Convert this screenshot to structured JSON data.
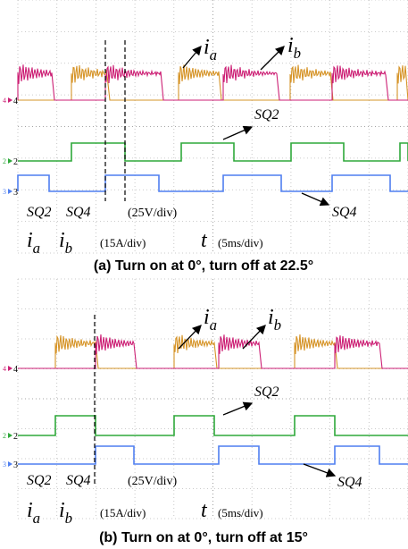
{
  "panels": [
    {
      "annotations": {
        "ia": {
          "symbol": "i",
          "subscript": "a"
        },
        "ib": {
          "symbol": "i",
          "subscript": "b"
        },
        "sq2": "SQ2",
        "sq4": "SQ4"
      },
      "channels": [
        "4",
        "2",
        "3"
      ],
      "legend": {
        "sq2": "SQ2",
        "sq4": "SQ4",
        "voltage_scale": "(25V/div)",
        "ia": {
          "symbol": "i",
          "subscript": "a"
        },
        "ib": {
          "symbol": "i",
          "subscript": "b"
        },
        "current_scale": "(15A/div)",
        "time": "t",
        "time_scale": "(5ms/div)"
      },
      "caption": "(a) Turn on at 0°, turn off at 22.5°"
    },
    {
      "annotations": {
        "ia": {
          "symbol": "i",
          "subscript": "a"
        },
        "ib": {
          "symbol": "i",
          "subscript": "b"
        },
        "sq2": "SQ2",
        "sq4": "SQ4"
      },
      "channels": [
        "4",
        "2",
        "3"
      ],
      "legend": {
        "sq2": "SQ2",
        "sq4": "SQ4",
        "voltage_scale": "(25V/div)",
        "ia": {
          "symbol": "i",
          "subscript": "a"
        },
        "ib": {
          "symbol": "i",
          "subscript": "b"
        },
        "current_scale": "(15A/div)",
        "time": "t",
        "time_scale": "(5ms/div)"
      },
      "caption": "(b) Turn on at 0°, turn off at 15°"
    }
  ]
}
